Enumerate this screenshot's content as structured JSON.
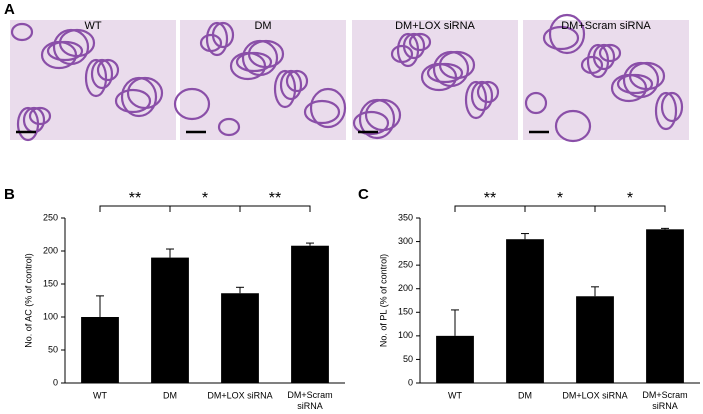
{
  "panel_a": {
    "label": "A",
    "titles": [
      "WT",
      "DM",
      "DM+LOX siRNA",
      "DM+Scram siRNA"
    ]
  },
  "chart_data": [
    {
      "type": "bar",
      "panel_label": "B",
      "y_label": "No. of AC (% of control)",
      "categories": [
        "WT",
        "DM",
        "DM+LOX siRNA",
        "DM+Scram siRNA"
      ],
      "values": [
        100,
        190,
        136,
        208
      ],
      "errors": [
        32,
        13,
        9,
        4
      ],
      "color": "#000000",
      "ylim": [
        0,
        250
      ],
      "yticks": [
        0,
        50,
        100,
        150,
        200,
        250
      ],
      "annotations": [
        {
          "text": "**",
          "categories": [
            "WT",
            "DM"
          ]
        },
        {
          "text": "*",
          "categories": [
            "DM",
            "DM+LOX siRNA"
          ]
        },
        {
          "text": "**",
          "categories": [
            "DM+LOX siRNA",
            "DM+Scram siRNA"
          ]
        }
      ]
    },
    {
      "type": "bar",
      "panel_label": "C",
      "y_label": "No. of PL (% of control)",
      "categories": [
        "WT",
        "DM",
        "DM+LOX siRNA",
        "DM+Scram siRNA"
      ],
      "values": [
        100,
        305,
        184,
        326
      ],
      "errors": [
        55,
        12,
        20,
        2
      ],
      "color": "#000000",
      "ylim": [
        0,
        350
      ],
      "yticks": [
        0,
        50,
        100,
        150,
        200,
        250,
        300,
        350
      ],
      "annotations": [
        {
          "text": "**",
          "categories": [
            "WT",
            "DM"
          ]
        },
        {
          "text": "*",
          "categories": [
            "DM",
            "DM+LOX siRNA"
          ]
        },
        {
          "text": "*",
          "categories": [
            "DM+LOX siRNA",
            "DM+Scram siRNA"
          ]
        }
      ]
    }
  ]
}
